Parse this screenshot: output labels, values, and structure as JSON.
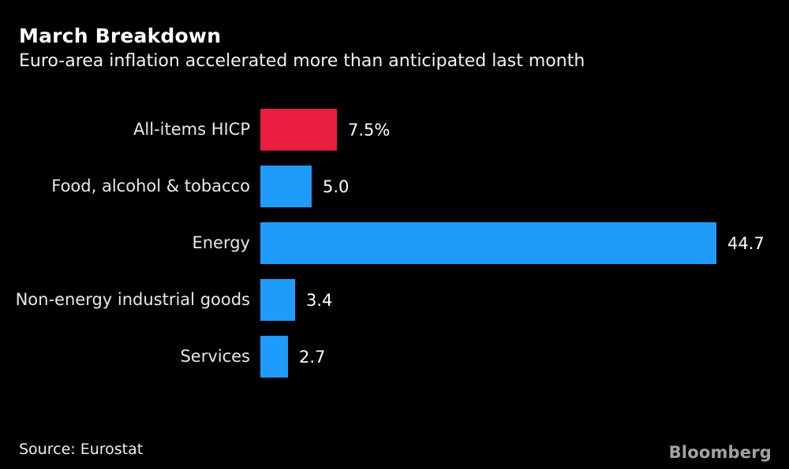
{
  "header": {
    "title": "March Breakdown",
    "subtitle": "Euro-area inflation accelerated more than anticipated last month"
  },
  "chart_data": {
    "type": "bar",
    "orientation": "horizontal",
    "categories": [
      "All-items HICP",
      "Food, alcohol & tobacco",
      "Energy",
      "Non-energy industrial goods",
      "Services"
    ],
    "values": [
      7.5,
      5.0,
      44.7,
      3.4,
      2.7
    ],
    "value_labels": [
      "7.5%",
      "5.0",
      "44.7",
      "3.4",
      "2.7"
    ],
    "bar_colors": [
      "#e91d3f",
      "#1f9bfa",
      "#1f9bfa",
      "#1f9bfa",
      "#1f9bfa"
    ],
    "highlight_color": "#e91d3f",
    "default_color": "#1f9bfa",
    "title": "March Breakdown",
    "xlabel": "",
    "ylabel": "",
    "xlim": [
      0,
      44.7
    ],
    "grid": false,
    "legend": "none",
    "background_color": "#000000",
    "label_color": "#e8e8e8",
    "value_label_color": "#ffffff"
  },
  "footer": {
    "source": "Source: Eurostat",
    "brand": "Bloomberg"
  }
}
